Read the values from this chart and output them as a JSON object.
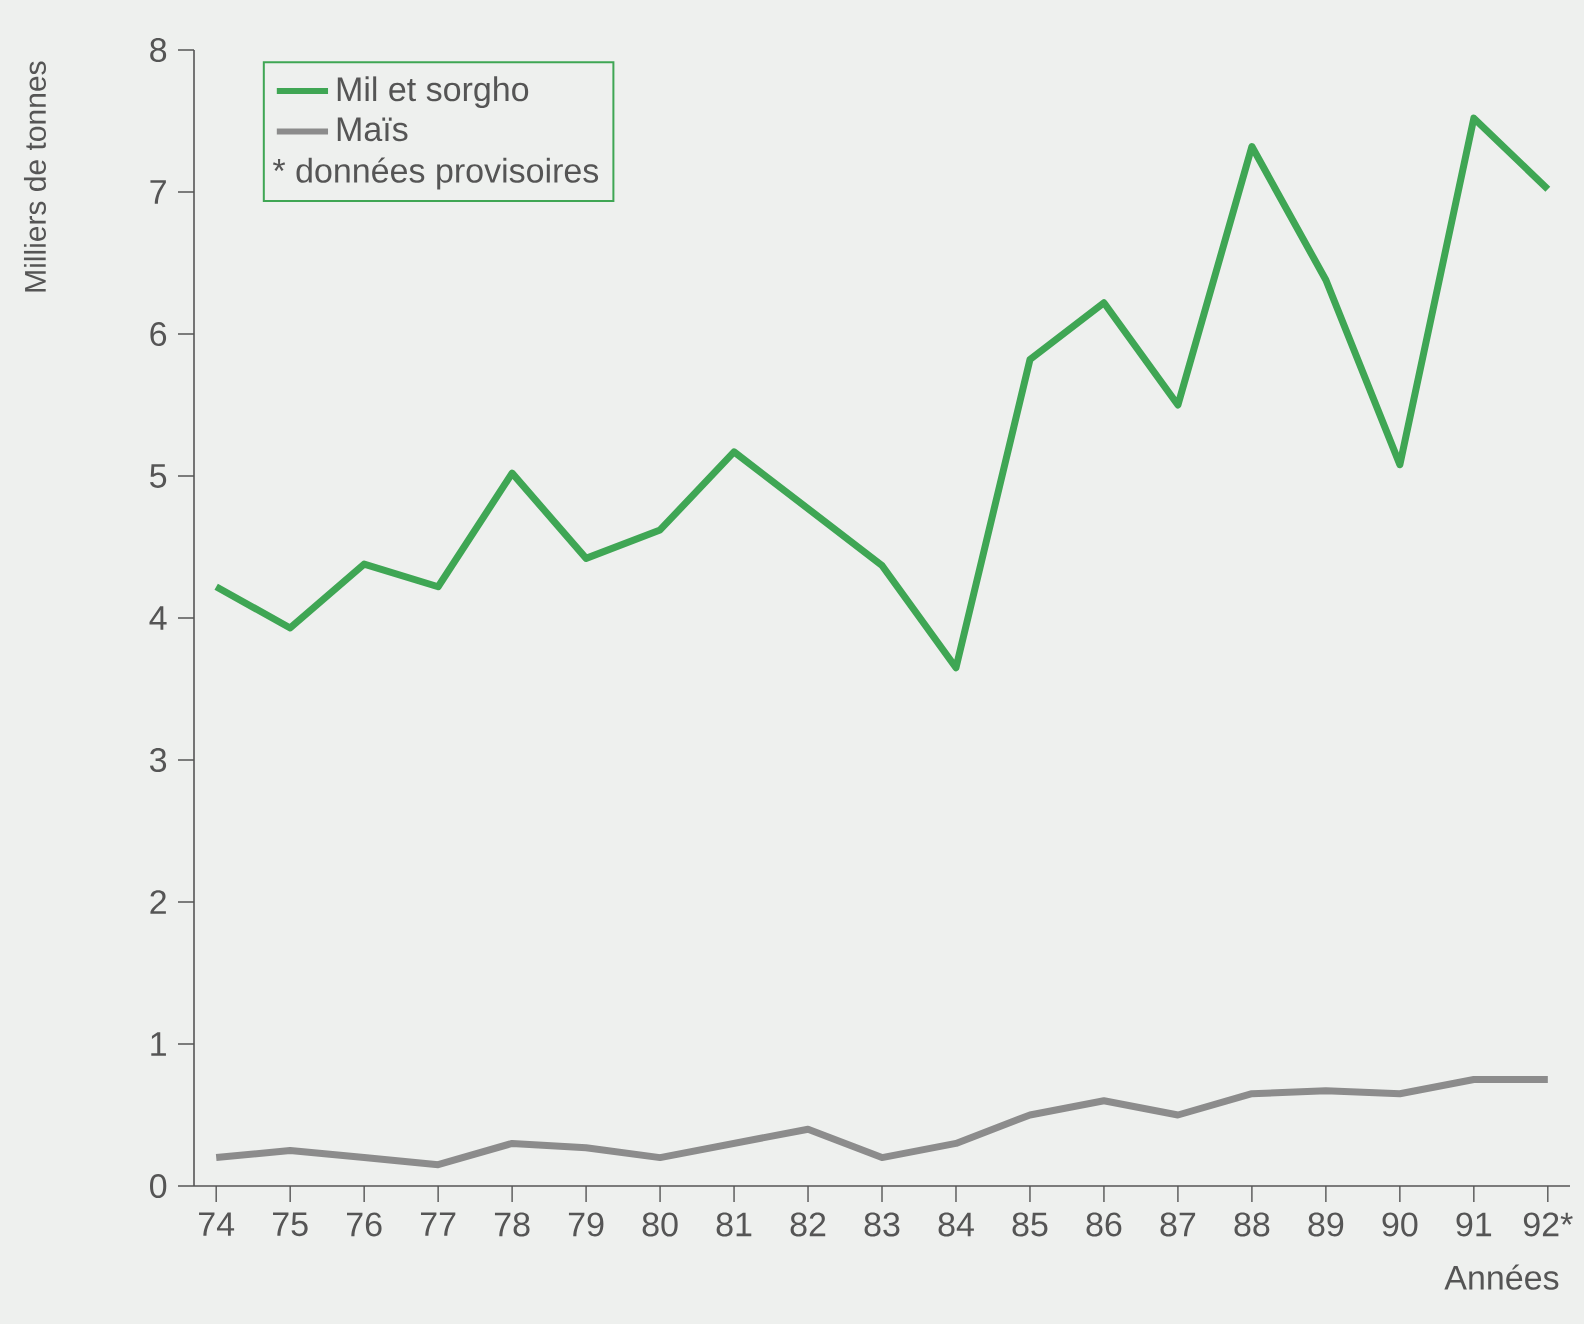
{
  "chart_data": {
    "type": "line",
    "ylabel": "Milliers de tonnes",
    "xlabel": "Années",
    "categories": [
      "74",
      "75",
      "76",
      "77",
      "78",
      "79",
      "80",
      "81",
      "82",
      "83",
      "84",
      "85",
      "86",
      "87",
      "88",
      "89",
      "90",
      "91",
      "92*"
    ],
    "series": [
      {
        "name": "Mil et sorgho",
        "color": "#3fa654",
        "values": [
          4.22,
          3.93,
          4.38,
          4.22,
          5.02,
          4.42,
          4.62,
          5.17,
          4.77,
          4.37,
          3.65,
          5.82,
          6.22,
          5.5,
          7.32,
          6.38,
          5.08,
          7.52,
          7.02
        ]
      },
      {
        "name": "Maïs",
        "color": "#8c8c8c",
        "values": [
          0.2,
          0.25,
          0.2,
          0.15,
          0.3,
          0.27,
          0.2,
          0.3,
          0.4,
          0.2,
          0.3,
          0.5,
          0.6,
          0.5,
          0.65,
          0.67,
          0.65,
          0.75,
          0.75
        ]
      }
    ],
    "ylim": [
      0,
      8
    ],
    "yticks": [
      0,
      1,
      2,
      3,
      4,
      5,
      6,
      7,
      8
    ],
    "grid": false,
    "legend": "top left",
    "marker": "none",
    "line_style": "solid",
    "annotations": [
      "* données provisoires"
    ]
  }
}
